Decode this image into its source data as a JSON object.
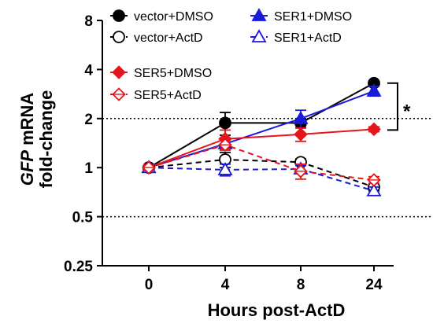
{
  "chart_data": {
    "type": "line",
    "title": "",
    "xlabel": "Hours post-ActD",
    "ylabel_italic": "GFP",
    "ylabel_rest": " mRNA",
    "ylabel_line2": "fold-change",
    "yscale": "log2",
    "ylim": [
      0.25,
      8
    ],
    "yticks": [
      0.25,
      0.5,
      1,
      2,
      4,
      8
    ],
    "ytick_labels": [
      "0.25",
      "0.5",
      "1",
      "2",
      "4",
      "8"
    ],
    "categories": [
      "0",
      "4",
      "8",
      "24"
    ],
    "reference_lines": [
      0.5,
      2
    ],
    "significance": {
      "label": "*",
      "from": 3.3,
      "to": 1.7
    },
    "legend_placement": "top",
    "series": [
      {
        "name": "vector+DMSO",
        "color": "#000000",
        "marker": "circle",
        "filled": true,
        "dashed": false,
        "values": [
          1.0,
          1.88,
          1.88,
          3.3
        ],
        "errors": [
          0.04,
          0.3,
          0.12,
          0.1
        ]
      },
      {
        "name": "vector+ActD",
        "color": "#000000",
        "marker": "circle",
        "filled": false,
        "dashed": true,
        "values": [
          1.0,
          1.12,
          1.08,
          0.76
        ],
        "errors": [
          0.04,
          0.12,
          0.05,
          0.04
        ]
      },
      {
        "name": "SER1+DMSO",
        "color": "#1a1adb",
        "marker": "triangle",
        "filled": true,
        "dashed": false,
        "values": [
          1.0,
          1.4,
          2.0,
          2.95
        ],
        "errors": [
          0.04,
          0.1,
          0.25,
          0.2
        ]
      },
      {
        "name": "SER1+ActD",
        "color": "#1a1adb",
        "marker": "triangle",
        "filled": false,
        "dashed": true,
        "values": [
          1.0,
          0.97,
          0.98,
          0.72
        ],
        "errors": [
          0.04,
          0.08,
          0.05,
          0.04
        ]
      },
      {
        "name": "SER5+DMSO",
        "color": "#e8141c",
        "marker": "diamond",
        "filled": true,
        "dashed": false,
        "values": [
          1.0,
          1.5,
          1.6,
          1.72
        ],
        "errors": [
          0.04,
          0.2,
          0.15,
          0.06
        ]
      },
      {
        "name": "SER5+ActD",
        "color": "#e8141c",
        "marker": "diamond",
        "filled": false,
        "dashed": true,
        "values": [
          1.0,
          1.38,
          0.95,
          0.84
        ],
        "errors": [
          0.04,
          0.1,
          0.1,
          0.04
        ]
      }
    ]
  }
}
